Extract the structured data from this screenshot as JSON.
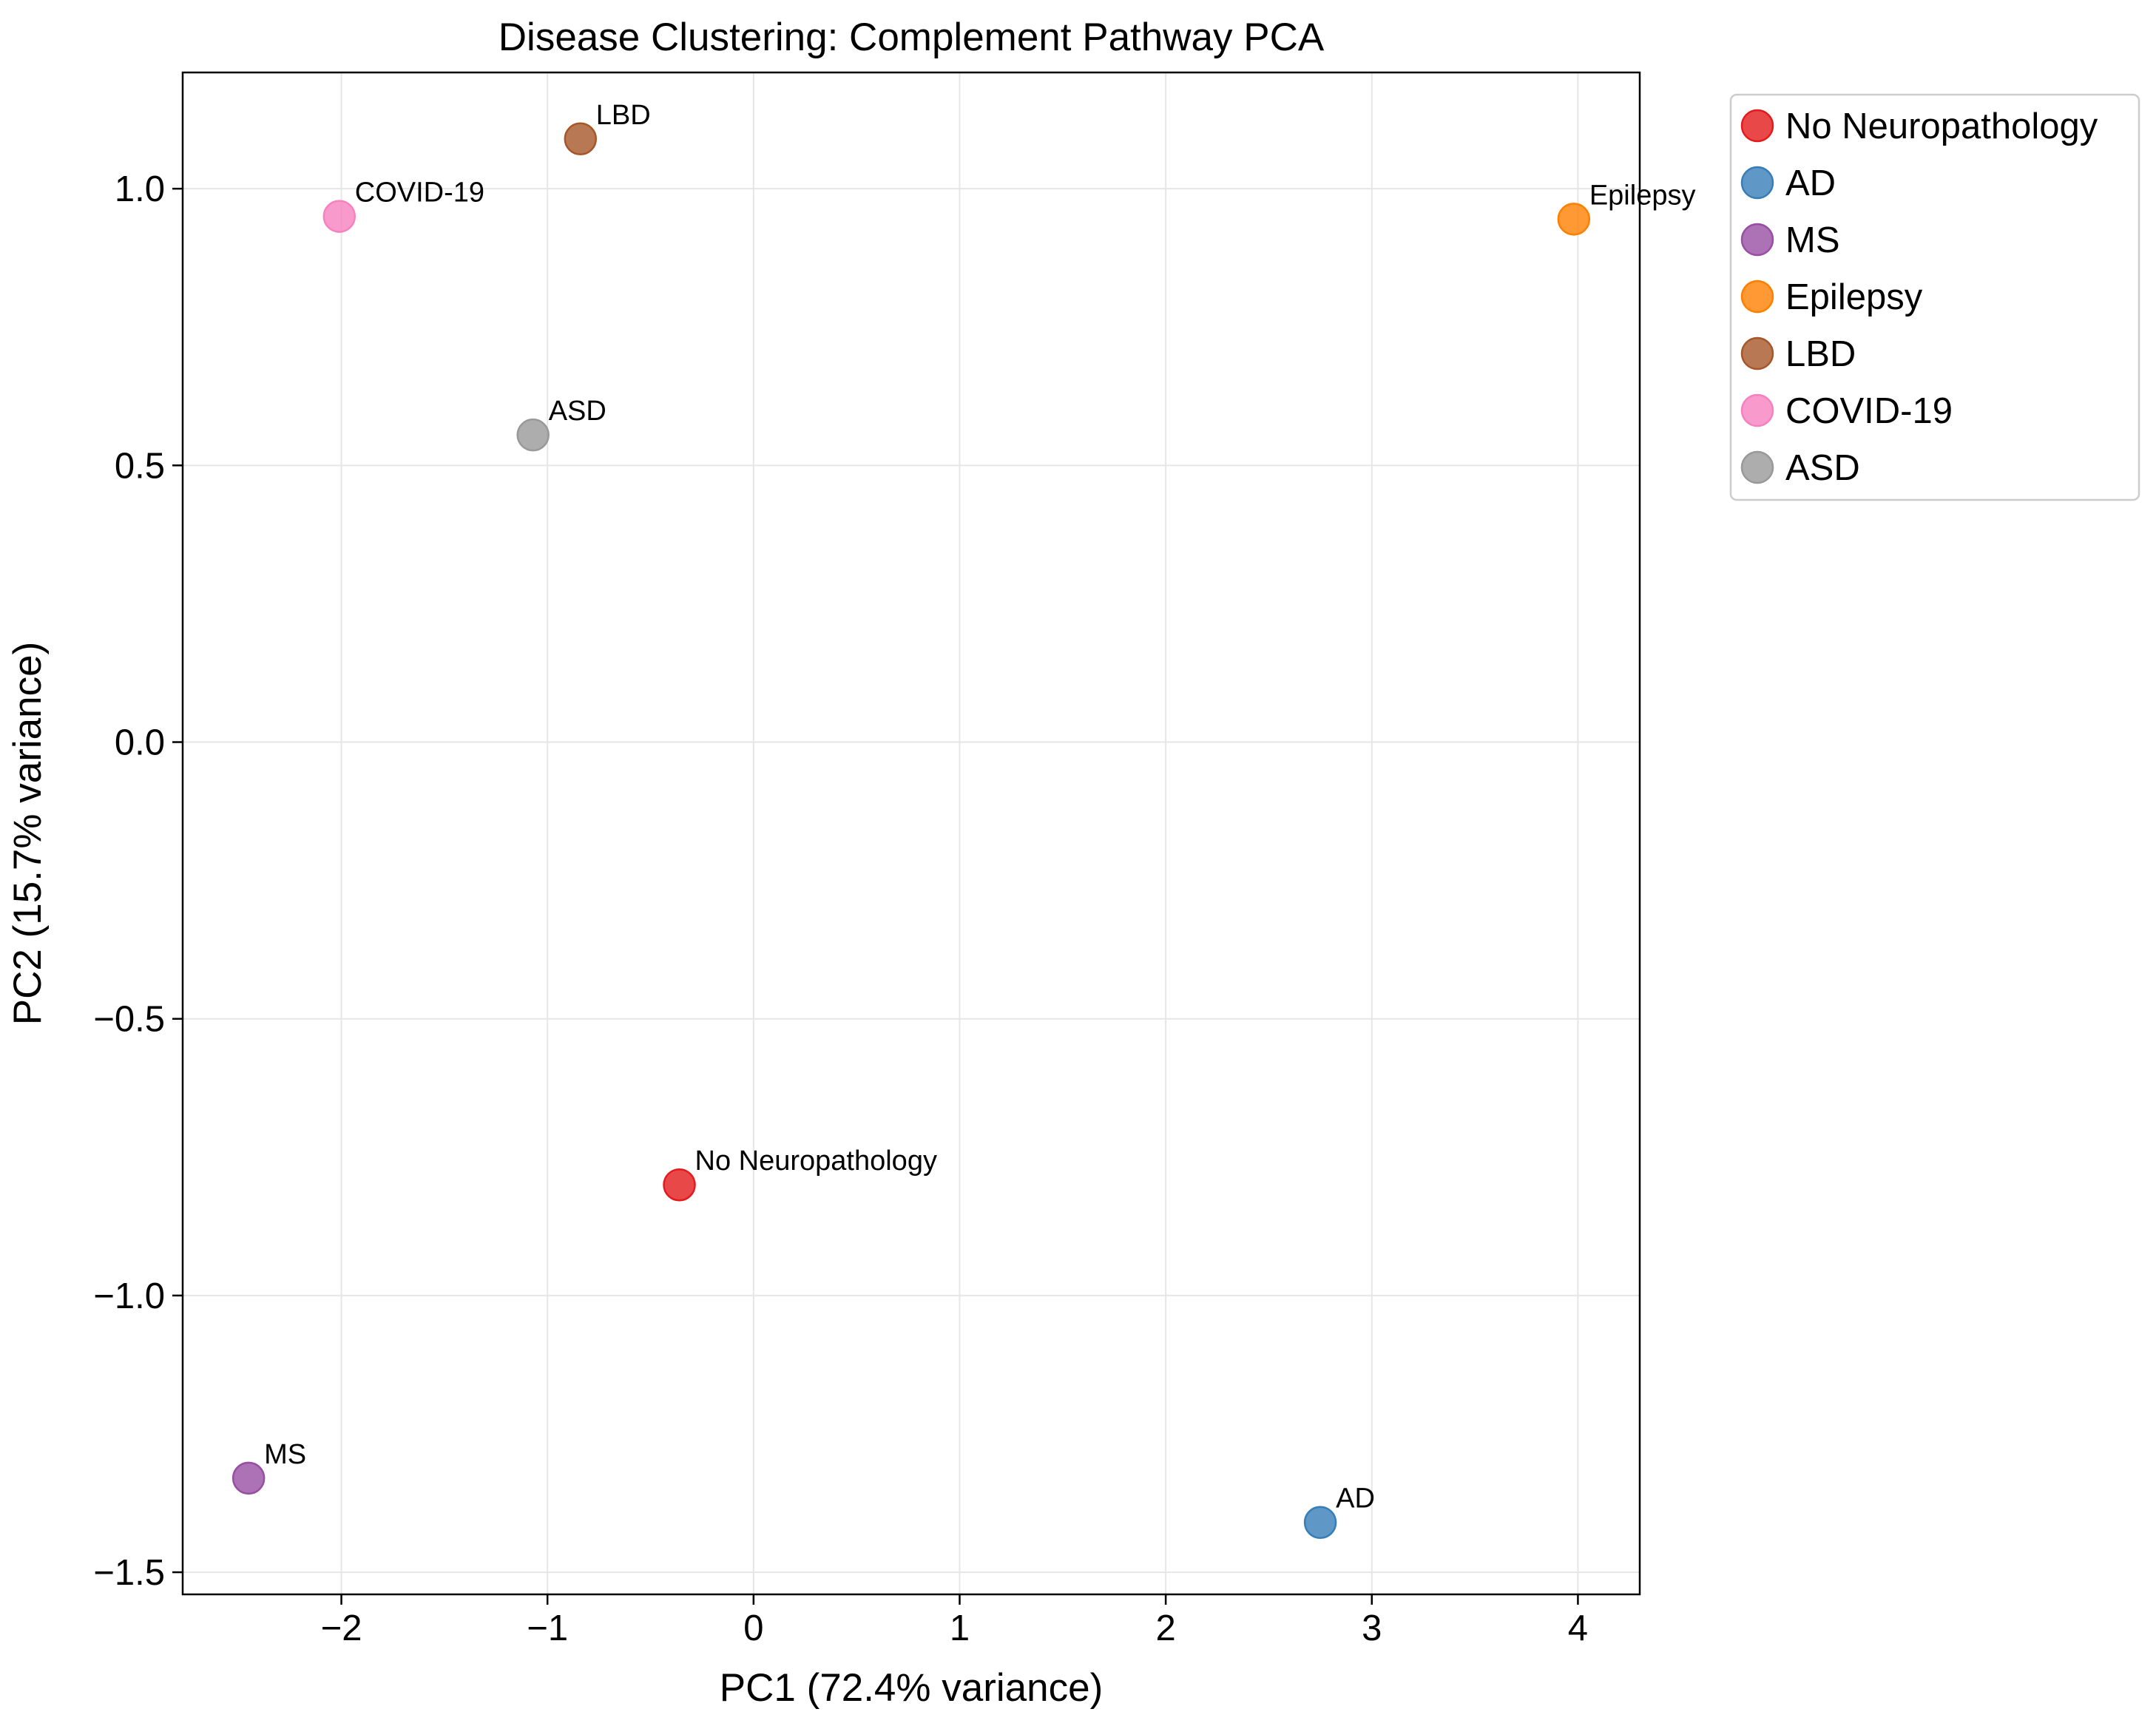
{
  "chart_data": {
    "type": "scatter",
    "title": "Disease Clustering: Complement Pathway PCA",
    "xlabel": "PC1 (72.4% variance)",
    "ylabel": "PC2 (15.7% variance)",
    "xlim": [
      -2.77,
      4.3
    ],
    "ylim": [
      -1.54,
      1.21
    ],
    "xticks": [
      -2,
      -1,
      0,
      1,
      2,
      3,
      4
    ],
    "xtick_labels": [
      "−2",
      "−1",
      "0",
      "1",
      "2",
      "3",
      "4"
    ],
    "yticks": [
      -1.5,
      -1.0,
      -0.5,
      0.0,
      0.5,
      1.0
    ],
    "ytick_labels": [
      "−1.5",
      "−1.0",
      "−0.5",
      "0.0",
      "0.5",
      "1.0"
    ],
    "grid": true,
    "legend_position": "outside-right-top",
    "series": [
      {
        "name": "No Neuropathology",
        "label": "No Neuropathology",
        "x": -0.36,
        "y": -0.8,
        "color": "#e41a1c"
      },
      {
        "name": "AD",
        "label": "AD",
        "x": 2.75,
        "y": -1.41,
        "color": "#377eb8"
      },
      {
        "name": "MS",
        "label": "MS",
        "x": -2.45,
        "y": -1.33,
        "color": "#984ea3"
      },
      {
        "name": "Epilepsy",
        "label": "Epilepsy",
        "x": 3.98,
        "y": 0.945,
        "color": "#ff7f00"
      },
      {
        "name": "LBD",
        "label": "LBD",
        "x": -0.84,
        "y": 1.09,
        "color": "#a65628"
      },
      {
        "name": "COVID-19",
        "label": "COVID-19",
        "x": -2.01,
        "y": 0.95,
        "color": "#f781bf"
      },
      {
        "name": "ASD",
        "label": "ASD",
        "x": -1.07,
        "y": 0.555,
        "color": "#999999"
      }
    ]
  }
}
